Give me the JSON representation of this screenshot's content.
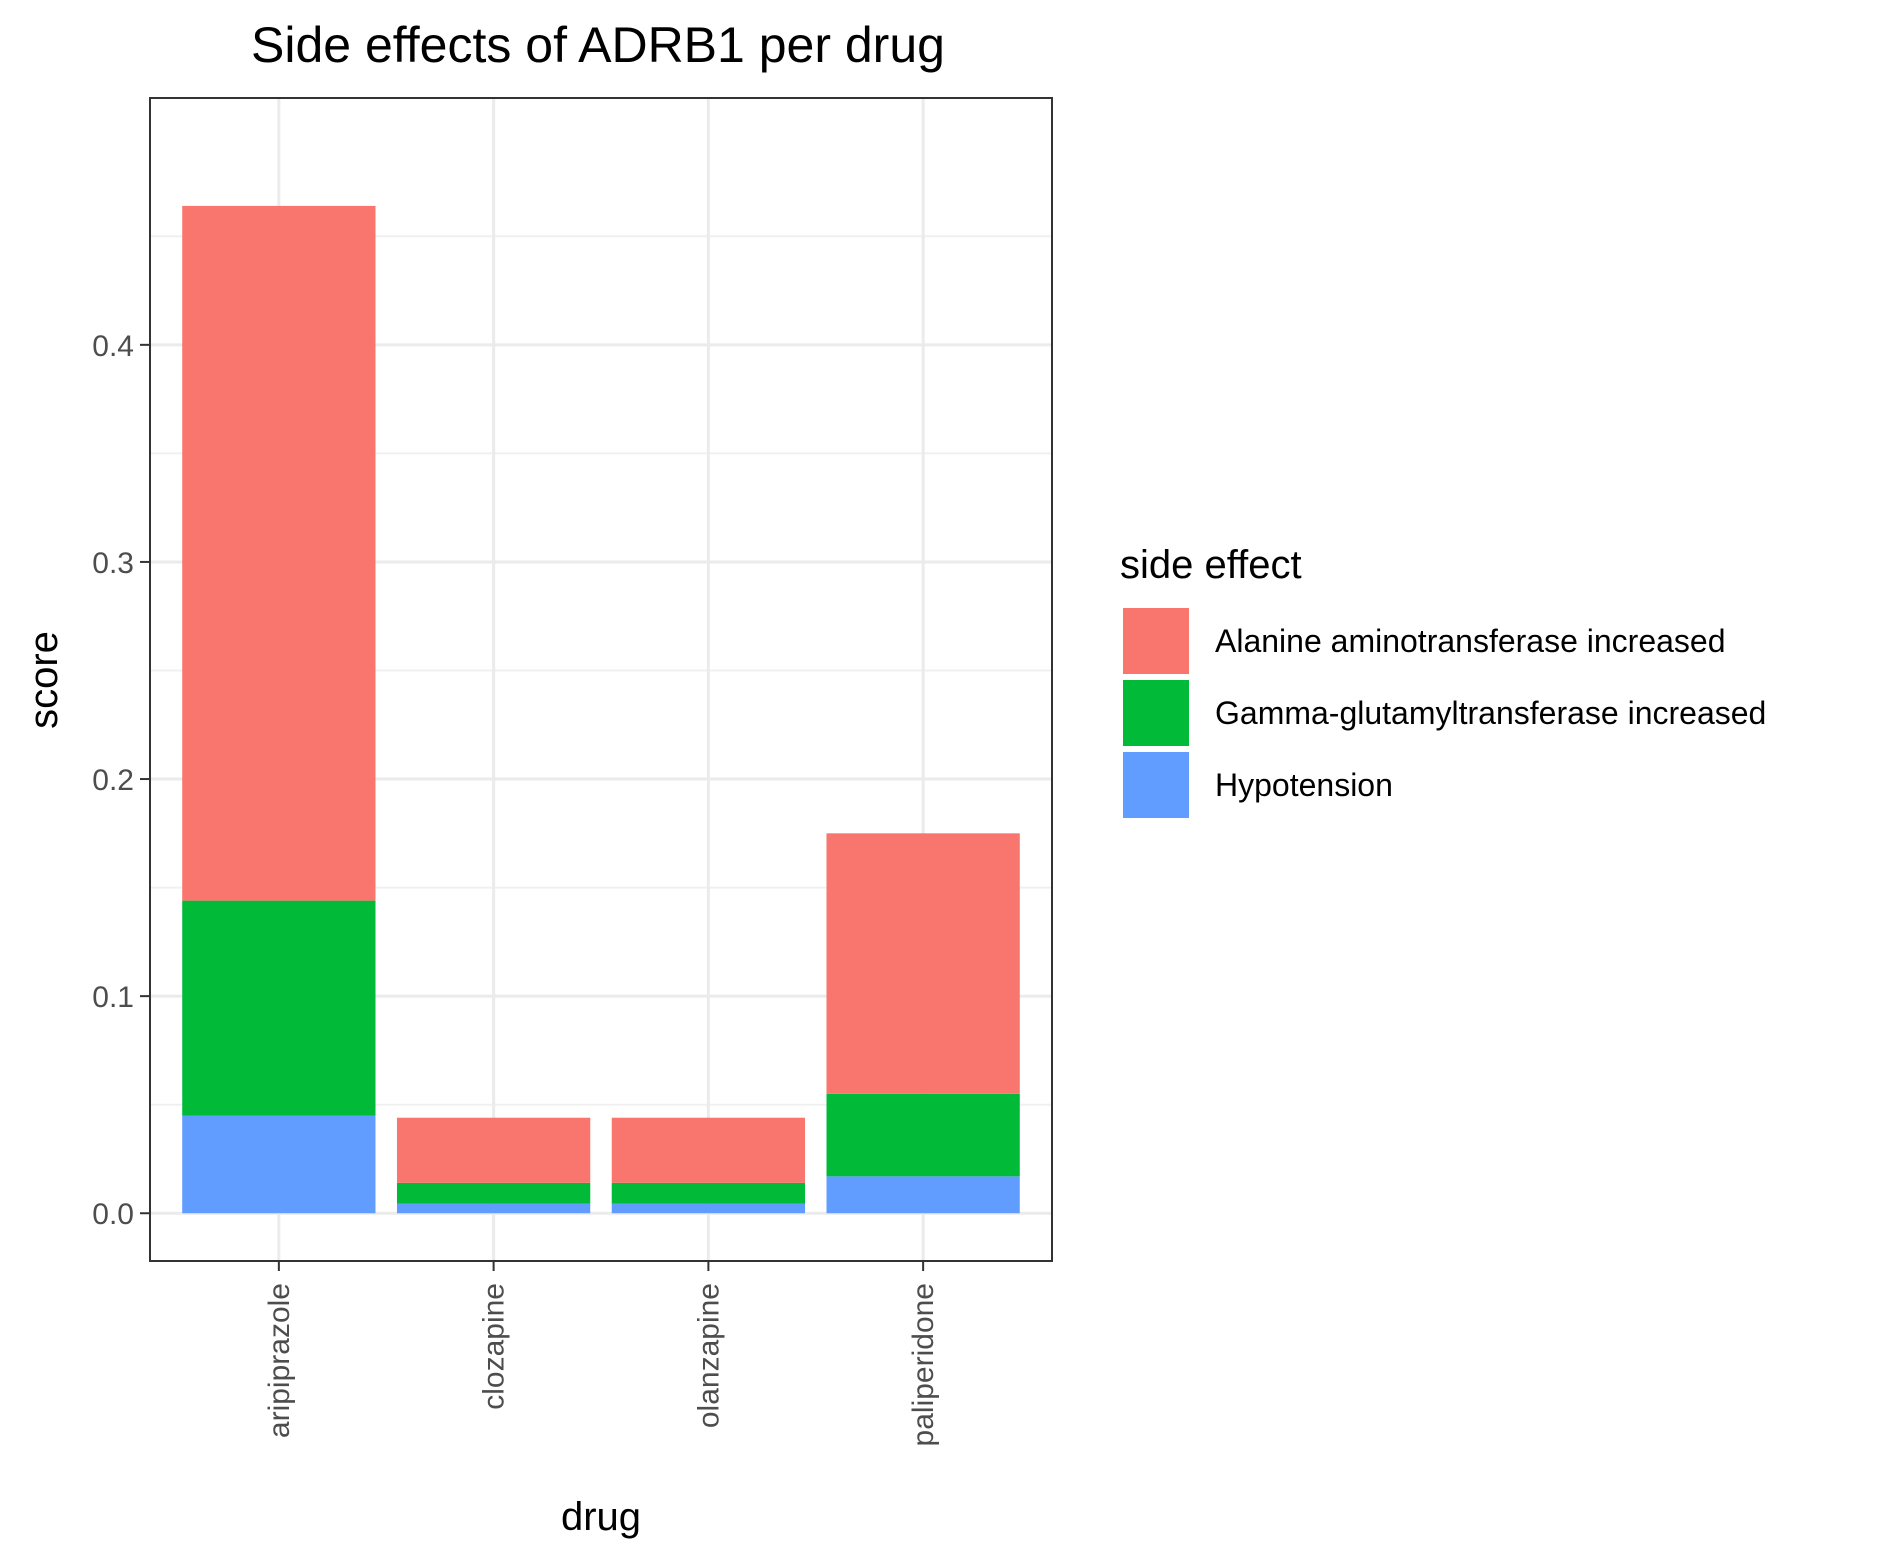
{
  "chart_data": {
    "type": "bar",
    "stacked": true,
    "title": "Side effects of ADRB1 per drug",
    "xlabel": "drug",
    "ylabel": "score",
    "categories": [
      "aripiprazole",
      "clozapine",
      "olanzapine",
      "paliperidone"
    ],
    "series": [
      {
        "name": "Hypotension",
        "color": "#619CFF",
        "values": [
          0.045,
          0.0045,
          0.0045,
          0.017
        ]
      },
      {
        "name": "Gamma-glutamyltransferase increased",
        "color": "#00BA38",
        "values": [
          0.099,
          0.0095,
          0.0095,
          0.038
        ]
      },
      {
        "name": "Alanine aminotransferase increased",
        "color": "#F8766D",
        "values": [
          0.32,
          0.03,
          0.03,
          0.12
        ]
      }
    ],
    "ylim": [
      -0.022,
      0.5137
    ],
    "yticks": [
      0.0,
      0.1,
      0.2,
      0.3,
      0.4
    ],
    "ytick_labels": [
      "0.0",
      "0.1",
      "0.2",
      "0.3",
      "0.4"
    ],
    "grid": true,
    "legend": {
      "title": "side effect",
      "placement": "right",
      "entries": [
        {
          "name": "Alanine aminotransferase increased",
          "color": "#F8766D"
        },
        {
          "name": "Gamma-glutamyltransferase increased",
          "color": "#00BA38"
        },
        {
          "name": "Hypotension",
          "color": "#619CFF"
        }
      ]
    }
  }
}
